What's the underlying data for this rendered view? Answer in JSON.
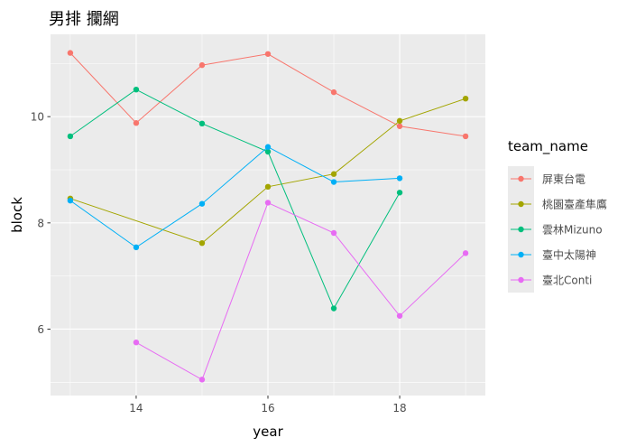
{
  "chart_data": {
    "type": "line",
    "title": "男排 攔網",
    "xlabel": "year",
    "ylabel": "block",
    "xlim": [
      12.7,
      19.3
    ],
    "ylim": [
      4.75,
      11.55
    ],
    "x_ticks": [
      14,
      16,
      18
    ],
    "y_ticks": [
      6,
      8,
      10
    ],
    "grid": true,
    "legend": {
      "title": "team_name",
      "placement": "right"
    },
    "series": [
      {
        "name": "屏東台電",
        "color": "#F8766D",
        "points": [
          [
            13,
            11.2
          ],
          [
            14,
            9.88
          ],
          [
            15,
            10.97
          ],
          [
            16,
            11.18
          ],
          [
            17,
            10.46
          ],
          [
            18,
            9.82
          ],
          [
            19,
            9.63
          ]
        ]
      },
      {
        "name": "桃園臺產隼鷹",
        "color": "#A3A500",
        "points": [
          [
            13,
            8.46
          ],
          [
            15,
            7.62
          ],
          [
            16,
            8.68
          ],
          [
            17,
            8.92
          ],
          [
            18,
            9.92
          ],
          [
            19,
            10.34
          ]
        ]
      },
      {
        "name": "雲林Mizuno",
        "color": "#00BF7D",
        "points": [
          [
            13,
            9.63
          ],
          [
            14,
            10.51
          ],
          [
            15,
            9.87
          ],
          [
            16,
            9.34
          ],
          [
            17,
            6.39
          ],
          [
            18,
            8.57
          ]
        ]
      },
      {
        "name": "臺中太陽神",
        "color": "#00B0F6",
        "points": [
          [
            13,
            8.42
          ],
          [
            14,
            7.54
          ],
          [
            15,
            8.36
          ],
          [
            16,
            9.43
          ],
          [
            17,
            8.77
          ],
          [
            18,
            8.84
          ]
        ]
      },
      {
        "name": "臺北Conti",
        "color": "#E76BF3",
        "points": [
          [
            14,
            5.75
          ],
          [
            15,
            5.05
          ],
          [
            16,
            8.38
          ],
          [
            17,
            7.81
          ],
          [
            18,
            6.25
          ],
          [
            19,
            7.43
          ]
        ]
      }
    ]
  }
}
